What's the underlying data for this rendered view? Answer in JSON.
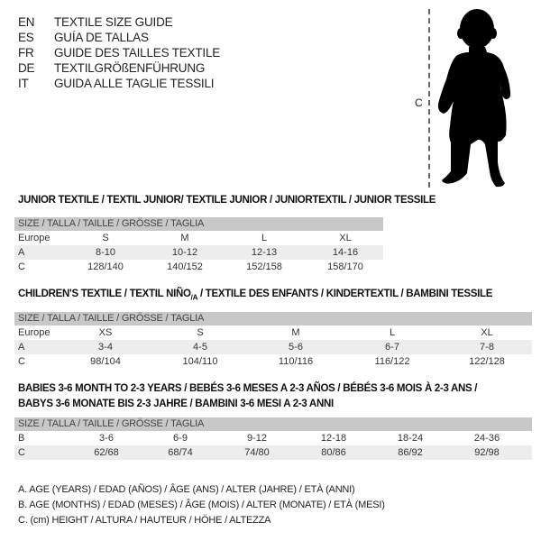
{
  "languages": [
    {
      "code": "EN",
      "title": "TEXTILE SIZE GUIDE"
    },
    {
      "code": "ES",
      "title": "GUÍA DE TALLAS"
    },
    {
      "code": "FR",
      "title": "GUIDE DES TAILLES TEXTILE"
    },
    {
      "code": "DE",
      "title": "TEXTILGRÖßENFÜHRUNG"
    },
    {
      "code": "IT",
      "title": "GUIDA ALLE TAGLIE TESSILI"
    }
  ],
  "figure": {
    "measure_label": "C",
    "icon": "child-silhouette"
  },
  "junior": {
    "title": "JUNIOR TEXTILE / TEXTIL JUNIOR/ TEXTILE JUNIOR / JUNIORTEXTIL / JUNIOR TESSILE",
    "header": "SIZE / TALLA / TAILLE / GRÖSSE / TAGLIA",
    "rows": [
      {
        "label": "Europe",
        "values": [
          "S",
          "M",
          "L",
          "XL"
        ]
      },
      {
        "label": "A",
        "values": [
          "8-10",
          "10-12",
          "12-13",
          "14-16"
        ]
      },
      {
        "label": "C",
        "values": [
          "128/140",
          "140/152",
          "152/158",
          "158/170"
        ]
      }
    ]
  },
  "children": {
    "title_a": "CHILDREN'S TEXTILE / TEXTIL NIÑO",
    "title_sub": "/A",
    "title_b": " / TEXTILE DES ENFANTS / KINDERTEXTIL / BAMBINI TESSILE",
    "header": "SIZE / TALLA / TAILLE / GRÖSSE / TAGLIA",
    "rows": [
      {
        "label": "Europe",
        "values": [
          "XS",
          "S",
          "M",
          "L",
          "XL"
        ]
      },
      {
        "label": "A",
        "values": [
          "3-4",
          "4-5",
          "5-6",
          "6-7",
          "7-8"
        ]
      },
      {
        "label": "C",
        "values": [
          "98/104",
          "104/110",
          "110/116",
          "116/122",
          "122/128"
        ]
      }
    ]
  },
  "babies": {
    "title_line1": "BABIES 3-6 MONTH TO 2-3 YEARS / BEBÉS 3-6 MESES A 2-3 AÑOS / BÉBÉS 3-6 MOIS À 2-3 ANS /",
    "title_line2": "BABYS 3-6 MONATE BIS 2-3 JAHRE / BAMBINI 3-6 MESI A 2-3 ANNI",
    "header": "SIZE / TALLA / TAILLE / GRÖSSE / TAGLIA",
    "rows": [
      {
        "label": "B",
        "values": [
          "3-6",
          "6-9",
          "9-12",
          "12-18",
          "18-24",
          "24-36"
        ]
      },
      {
        "label": "C",
        "values": [
          "62/68",
          "68/74",
          "74/80",
          "80/86",
          "86/92",
          "92/98"
        ]
      }
    ]
  },
  "legend": [
    "A. AGE (YEARS) / EDAD (AÑOS) / ÂGE (ANS) / ALTER (JAHRE) / ETÀ (ANNI)",
    "B. AGE (MONTHS) / EDAD (MESES) / ÂGE (MOIS) / ALTER (MONATE) / ETÀ (MESI)",
    "C. (cm) HEIGHT / ALTURA / HAUTEUR / HÖHE / ALTEZZA"
  ]
}
